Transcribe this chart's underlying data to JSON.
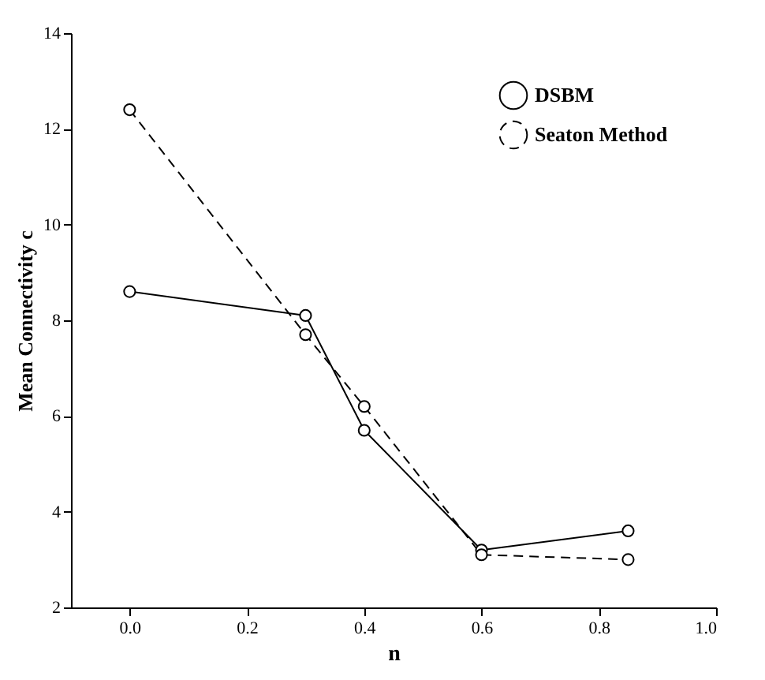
{
  "chart_data": {
    "type": "line",
    "xlabel": "n",
    "ylabel": "Mean Connectivity c",
    "x": [
      0.0,
      0.3,
      0.4,
      0.6,
      0.85
    ],
    "series": [
      {
        "name": "DSBM",
        "color": "#000000",
        "line_style": "solid",
        "marker": "circle",
        "values": [
          8.6,
          8.1,
          5.7,
          3.2,
          3.6
        ]
      },
      {
        "name": "Seaton Method",
        "color": "#000000",
        "line_style": "dashed",
        "marker": "circle",
        "values": [
          12.4,
          7.7,
          6.2,
          3.1,
          3.0
        ]
      }
    ],
    "xlim": [
      -0.1,
      1.0
    ],
    "xticks": [
      {
        "value": 0,
        "label": "0.0"
      },
      0.2,
      0.4,
      0.6,
      0.8,
      {
        "value": 1,
        "label": "1.0"
      }
    ],
    "ylim": [
      2,
      14
    ],
    "yticks": [
      2,
      4,
      6,
      8,
      10,
      12,
      14
    ],
    "grid": false,
    "legend": "top right"
  }
}
